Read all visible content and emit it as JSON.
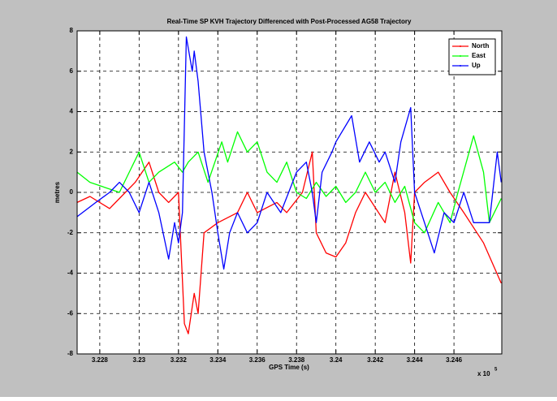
{
  "chart_data": {
    "type": "line",
    "title": "Real-Time SP KVH Trajectory Differenced with Post-Processed AG58 Trajectory",
    "xlabel": "GPS Time (s)",
    "ylabel": "metres",
    "x_scale_label": {
      "base": "x 10",
      "exponent": "5"
    },
    "xlim": [
      3.22685,
      3.24843
    ],
    "ylim": [
      -8,
      8
    ],
    "xticks": [
      3.228,
      3.23,
      3.232,
      3.234,
      3.236,
      3.238,
      3.24,
      3.242,
      3.244,
      3.246
    ],
    "yticks": [
      -8,
      -6,
      -4,
      -2,
      0,
      2,
      4,
      6,
      8
    ],
    "grid": true,
    "legend_position": "upper-right",
    "series": [
      {
        "name": "North",
        "color": "#ff0000",
        "x": [
          3.22685,
          3.2275,
          3.2285,
          3.229,
          3.2298,
          3.2305,
          3.231,
          3.2315,
          3.232,
          3.2323,
          3.2325,
          3.2328,
          3.233,
          3.2333,
          3.234,
          3.235,
          3.2355,
          3.236,
          3.237,
          3.2375,
          3.2383,
          3.2388,
          3.239,
          3.2395,
          3.24,
          3.2405,
          3.241,
          3.2415,
          3.2425,
          3.243,
          3.2435,
          3.2438,
          3.244,
          3.2445,
          3.2452,
          3.2458,
          3.2465,
          3.2475,
          3.2484
        ],
        "values": [
          -0.5,
          -0.2,
          -0.8,
          -0.3,
          0.5,
          1.5,
          0,
          -0.5,
          0,
          -6.5,
          -7,
          -5,
          -6,
          -2,
          -1.5,
          -1,
          0,
          -1,
          -0.5,
          -1,
          0,
          2,
          -2,
          -3,
          -3.2,
          -2.5,
          -1,
          0,
          -1.5,
          1,
          -1,
          -3.5,
          0,
          0.5,
          1,
          0,
          -1,
          -2.5,
          -4.5
        ]
      },
      {
        "name": "East",
        "color": "#00ff00",
        "x": [
          3.22685,
          3.2275,
          3.229,
          3.2295,
          3.23,
          3.2305,
          3.231,
          3.2318,
          3.2322,
          3.2325,
          3.233,
          3.2335,
          3.2342,
          3.2345,
          3.235,
          3.2355,
          3.236,
          3.2365,
          3.237,
          3.2375,
          3.238,
          3.2385,
          3.239,
          3.2395,
          3.24,
          3.2405,
          3.241,
          3.2415,
          3.242,
          3.2425,
          3.243,
          3.2435,
          3.244,
          3.2445,
          3.2452,
          3.2458,
          3.2462,
          3.247,
          3.2475,
          3.2478,
          3.2484
        ],
        "values": [
          1,
          0.5,
          0,
          1,
          2,
          0.5,
          1,
          1.5,
          1,
          1.5,
          2,
          0.5,
          2.5,
          1.5,
          3,
          2,
          2.5,
          1,
          0.5,
          1.5,
          0,
          -0.3,
          0.5,
          -0.2,
          0.3,
          -0.5,
          0,
          1,
          0,
          0.5,
          -0.5,
          0.3,
          -1.5,
          -2,
          -0.5,
          -1.5,
          0,
          2.8,
          1,
          -1.5,
          -0.3
        ]
      },
      {
        "name": "Up",
        "color": "#0000ff",
        "x": [
          3.22685,
          3.2278,
          3.2285,
          3.229,
          3.2295,
          3.23,
          3.2305,
          3.231,
          3.2315,
          3.2318,
          3.232,
          3.2322,
          3.2324,
          3.2327,
          3.2328,
          3.233,
          3.2333,
          3.2337,
          3.234,
          3.2343,
          3.2346,
          3.235,
          3.2355,
          3.236,
          3.2365,
          3.2372,
          3.238,
          3.2385,
          3.2388,
          3.239,
          3.2393,
          3.2398,
          3.24,
          3.2408,
          3.2412,
          3.2417,
          3.2422,
          3.2425,
          3.243,
          3.2433,
          3.2438,
          3.244,
          3.2445,
          3.245,
          3.2455,
          3.246,
          3.2465,
          3.247,
          3.2478,
          3.2482,
          3.2484
        ],
        "values": [
          -1.2,
          -0.5,
          0,
          0.5,
          0,
          -1,
          0.5,
          -1,
          -3.3,
          -1.5,
          -2.5,
          -1,
          7.7,
          6,
          7,
          5.5,
          2,
          0,
          -2,
          -3.8,
          -2,
          -1,
          -2,
          -1.5,
          0,
          -1,
          1,
          1.5,
          0,
          -1.5,
          1,
          2,
          2.5,
          3.8,
          1.5,
          2.5,
          1.5,
          2,
          0.5,
          2.5,
          4.2,
          0,
          -1.5,
          -3,
          -1,
          -1.5,
          0,
          -1.5,
          -1.5,
          2,
          0.5
        ]
      }
    ]
  }
}
